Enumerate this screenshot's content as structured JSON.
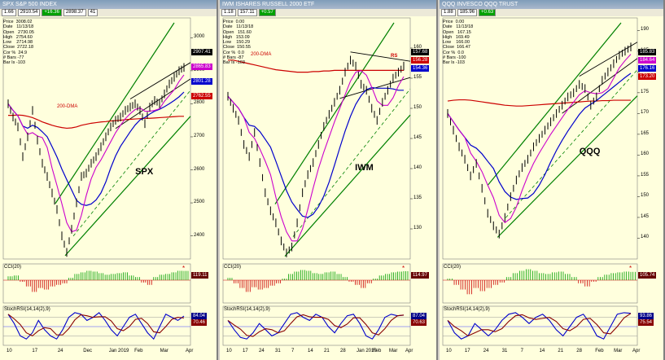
{
  "panes": [
    {
      "id": "spx",
      "title": "SPX S&P 500 INDEX",
      "toolbar": [
        "1.66",
        "2910.54",
        "+16.36",
        "2898.37",
        "41"
      ],
      "info": [
        "Price  3008.02",
        "Date   11/13/18",
        "Open   2730.05",
        "High   2754.60",
        "Low    2714.98",
        "Close  2722.18",
        "Cor %  24.9",
        "# Bars -77",
        "Bar Is -103"
      ],
      "symbol_label": "SPX",
      "ma_label": "200-DMA",
      "price_tags": [
        {
          "text": "2907.41",
          "color": "#000000"
        },
        {
          "text": "2865.83",
          "color": "#cc00cc"
        },
        {
          "text": "2801.28",
          "color": "#0000cc"
        },
        {
          "text": "2762.55",
          "color": "#cc0000"
        }
      ],
      "cci_label": "CCI(20)",
      "cci_tag": "119.11",
      "stoch_label": "StochRSI(14,14(2),9)",
      "stoch_tags": [
        "84.04",
        "70.46"
      ],
      "xticks": [
        "10",
        "17",
        "24",
        "Dec",
        "Jan 2019",
        "Feb",
        "Mar",
        "Apr"
      ]
    },
    {
      "id": "iwm",
      "title": "IWM ISHARES RUSSELL 2000 ETF",
      "toolbar": [
        "1.18",
        "157.11",
        "+0.57"
      ],
      "info": [
        "Price  0.00",
        "Date   11/13/18",
        "Open   151.60",
        "High   153.09",
        "Low    150.29",
        "Close  150.55",
        "Cor %  0.0",
        "# Bars -87",
        "Bar Is -103"
      ],
      "symbol_label": "IWM",
      "ma_label": "200-DMA",
      "rs_label": "RS",
      "price_tags": [
        {
          "text": "157.68",
          "color": "#000000"
        },
        {
          "text": "156.28",
          "color": "#cc0000"
        },
        {
          "text": "154.36",
          "color": "#0000cc"
        }
      ],
      "cci_label": "CCI(20)",
      "cci_tag": "114.97",
      "stoch_label": "StochRSI(14,14(2),9)",
      "stoch_tags": [
        "87.04",
        "70.63"
      ],
      "xticks": [
        "10",
        "17",
        "24",
        "31",
        "7",
        "14",
        "21",
        "28",
        "Jan 2019",
        "Feb",
        "Mar",
        "Apr"
      ]
    },
    {
      "id": "qqq",
      "title": "QQQ INVESCO QQQ TRUST",
      "toolbar": [
        "1.88",
        "185.96",
        "+0.63"
      ],
      "info": [
        "Price  0.00",
        "Date   11/13/18",
        "Open   167.15",
        "High   169.49",
        "Low    166.00",
        "Close  166.47",
        "Cor %  0.0",
        "# Bars -100",
        "Bar Is -103"
      ],
      "symbol_label": "QQQ",
      "ma_label": "",
      "price_tags": [
        {
          "text": "185.83",
          "color": "#000000"
        },
        {
          "text": "184.64",
          "color": "#cc00cc"
        },
        {
          "text": "176.16",
          "color": "#0000cc"
        },
        {
          "text": "173.20",
          "color": "#cc0000"
        }
      ],
      "cci_label": "CCI(20)",
      "cci_tag": "105.74",
      "stoch_label": "StochRSI(14,14(2),9)",
      "stoch_tags": [
        "93.86",
        "75.54"
      ],
      "xticks": [
        "10",
        "17",
        "24",
        "31",
        "7",
        "14",
        "21",
        "28",
        "Feb",
        "Mar",
        "Apr"
      ]
    }
  ],
  "chart_data": [
    {
      "type": "line",
      "title": "SPX",
      "yticks": [
        3000,
        2900,
        2800,
        2700,
        2600,
        2500,
        2400
      ],
      "ylim": [
        2330,
        3060
      ],
      "series": [
        {
          "name": "Price",
          "values": [
            2800,
            2760,
            2730,
            2640,
            2700,
            2780,
            2690,
            2620,
            2580,
            2530,
            2480,
            2400,
            2350,
            2420,
            2500,
            2580,
            2590,
            2620,
            2640,
            2670,
            2700,
            2730,
            2750,
            2760,
            2780,
            2790,
            2800,
            2780,
            2740,
            2790,
            2810,
            2800,
            2830,
            2860,
            2880,
            2900,
            2910
          ]
        },
        {
          "name": "200-DMA",
          "values": [
            2765,
            2765,
            2766,
            2765,
            2762,
            2758,
            2752,
            2745,
            2740,
            2735,
            2731,
            2728,
            2726,
            2727,
            2730,
            2735,
            2738,
            2741,
            2743,
            2745,
            2746,
            2748,
            2749,
            2750,
            2752,
            2753,
            2754,
            2755,
            2756,
            2756,
            2757,
            2758,
            2759,
            2760,
            2761,
            2762,
            2762
          ]
        }
      ],
      "cci_values": [
        50,
        60,
        -20,
        -80,
        -150,
        -100,
        -120,
        -80,
        -60,
        -40,
        30,
        80,
        100,
        120,
        110,
        90,
        70,
        80,
        90,
        100,
        60,
        40,
        -30,
        -60,
        40,
        70,
        80,
        100,
        120,
        119
      ],
      "stoch_values": [
        90,
        60,
        20,
        10,
        30,
        70,
        40,
        20,
        10,
        40,
        80,
        95,
        90,
        70,
        80,
        95,
        70,
        40,
        20,
        50,
        80,
        90,
        60,
        30,
        10,
        50,
        90,
        80,
        70,
        84
      ]
    },
    {
      "type": "line",
      "title": "IWM",
      "yticks": [
        160,
        155,
        150,
        145,
        140,
        135,
        130
      ],
      "ylim": [
        125,
        165
      ],
      "series": [
        {
          "name": "Price",
          "values": [
            152,
            150,
            148,
            144,
            142,
            146,
            141,
            136,
            133,
            131,
            128,
            126,
            127,
            131,
            136,
            139,
            141,
            144,
            147,
            149,
            151,
            153,
            156,
            158,
            157,
            154,
            153,
            150,
            148,
            151,
            153,
            155,
            156,
            157
          ]
        },
        {
          "name": "200-DMA",
          "values": [
            158,
            158,
            157.8,
            157.6,
            157.4,
            157.2,
            157,
            156.8,
            156.6,
            156.4,
            156.3,
            156.2,
            156.1,
            156,
            156,
            156,
            156.1,
            156.1,
            156.2,
            156.2,
            156.3,
            156.3,
            156.3,
            156.3,
            156.3,
            156.3,
            156.3,
            156.3,
            156.3,
            156.3,
            156.3,
            156.3,
            156.3,
            156.3
          ]
        }
      ],
      "cci_values": [
        30,
        -40,
        -100,
        -150,
        -90,
        -120,
        -100,
        -70,
        -40,
        20,
        80,
        110,
        130,
        120,
        90,
        80,
        100,
        110,
        80,
        40,
        -20,
        -60,
        -100,
        -40,
        20,
        60,
        80,
        100,
        110,
        115
      ],
      "stoch_values": [
        70,
        40,
        15,
        10,
        30,
        60,
        40,
        20,
        30,
        60,
        90,
        95,
        80,
        70,
        90,
        80,
        50,
        30,
        60,
        85,
        90,
        60,
        20,
        10,
        40,
        80,
        90,
        85,
        87
      ]
    },
    {
      "type": "line",
      "title": "QQQ",
      "yticks": [
        190,
        185,
        180,
        175,
        170,
        165,
        160,
        155,
        150,
        145,
        140
      ],
      "ylim": [
        135,
        193
      ],
      "series": [
        {
          "name": "Price",
          "values": [
            170,
            166,
            162,
            159,
            155,
            158,
            152,
            146,
            143,
            141,
            145,
            150,
            154,
            157,
            159,
            162,
            164,
            166,
            168,
            170,
            172,
            174,
            175,
            177,
            176,
            172,
            174,
            178,
            180,
            182,
            184,
            185,
            186
          ]
        },
        {
          "name": "200-DMA",
          "values": [
            173,
            173.2,
            173.3,
            173.3,
            173.2,
            173,
            172.8,
            172.6,
            172.4,
            172.2,
            172,
            171.9,
            171.8,
            171.8,
            171.9,
            172,
            172.1,
            172.2,
            172.3,
            172.4,
            172.5,
            172.6,
            172.7,
            172.8,
            172.9,
            173,
            173,
            173.1,
            173.1,
            173.2,
            173.2,
            173.2,
            173.2
          ]
        }
      ],
      "cci_values": [
        20,
        -60,
        -120,
        -180,
        -100,
        -140,
        -100,
        -60,
        -30,
        40,
        90,
        120,
        140,
        120,
        90,
        80,
        100,
        110,
        80,
        40,
        -40,
        -80,
        -20,
        40,
        70,
        90,
        100,
        110,
        106
      ],
      "stoch_values": [
        70,
        30,
        10,
        20,
        60,
        40,
        20,
        40,
        70,
        90,
        95,
        80,
        60,
        80,
        90,
        70,
        40,
        20,
        50,
        80,
        90,
        60,
        20,
        10,
        50,
        90,
        95,
        93
      ]
    }
  ]
}
